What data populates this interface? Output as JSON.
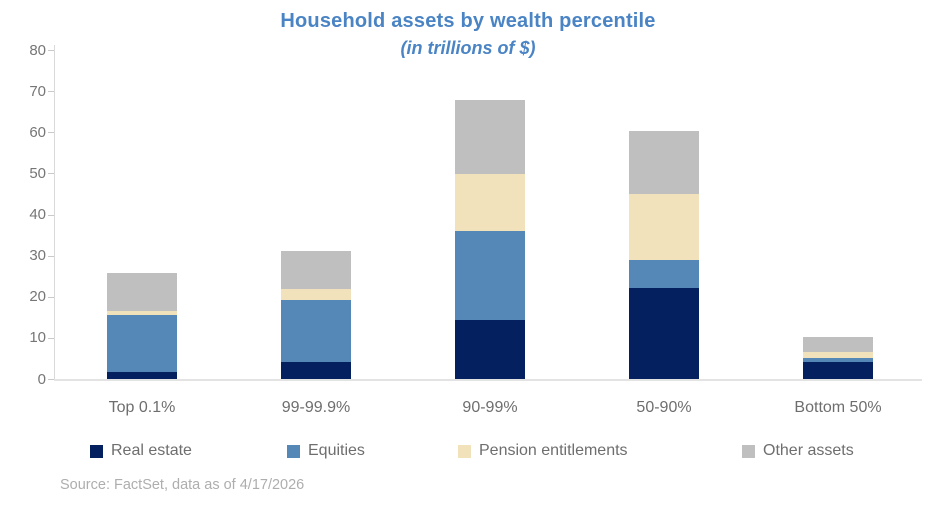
{
  "title": "Household assets by wealth percentile",
  "subtitle": "(in trillions of $)",
  "source_note": "Source: FactSet, data as of 4/17/2026",
  "colors": {
    "title_text": "#4a84c4",
    "axis_line": "#d9d9d9",
    "axis_label_gray": "#767676",
    "legend_label_gray": "#6e6e6e",
    "source_gray": "#aeaeae"
  },
  "chart_data": {
    "type": "bar",
    "stacked": true,
    "title": "Household assets by wealth percentile",
    "subtitle": "(in trillions of $)",
    "categories": [
      "Top 0.1%",
      "99-99.9%",
      "90-99%",
      "50-90%",
      "Bottom 50%"
    ],
    "series": [
      {
        "name": "Real estate",
        "color": "#04205e",
        "values": [
          1.8,
          4.3,
          14.5,
          22.3,
          4.3
        ]
      },
      {
        "name": "Equities",
        "color": "#5587b7",
        "values": [
          14.0,
          15.0,
          21.5,
          6.7,
          1.0
        ]
      },
      {
        "name": "Pension entitlements",
        "color": "#f2e2bc",
        "values": [
          0.8,
          2.6,
          14.0,
          16.1,
          1.5
        ]
      },
      {
        "name": "Other assets",
        "color": "#bfbfbf",
        "values": [
          9.2,
          9.3,
          18.0,
          15.3,
          3.5
        ]
      }
    ],
    "totals": [
      25.8,
      31.2,
      68.0,
      60.4,
      10.3
    ],
    "ylabel": "",
    "xlabel": "",
    "ylim": [
      0,
      80
    ],
    "yticks": [
      0,
      10,
      20,
      30,
      40,
      50,
      60,
      70,
      80
    ],
    "grid": false,
    "legend_position": "bottom"
  }
}
